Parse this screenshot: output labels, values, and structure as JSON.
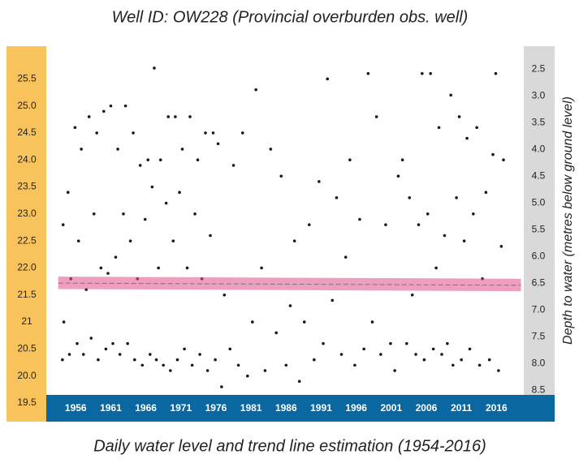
{
  "chart_data": {
    "type": "scatter",
    "title": "Well ID: OW228  (Provincial overburden obs. well)",
    "caption": "Daily water level and trend line estimation  (1954-2016)",
    "y2_label": "Depth to water (metres below ground level)",
    "color": "#1a1a1a",
    "x": [
      1954.1,
      1954.2,
      1954.3,
      1954.9,
      1955.1,
      1955.3,
      1955.9,
      1956.2,
      1956.4,
      1956.8,
      1957.1,
      1957.5,
      1957.9,
      1958.2,
      1958.6,
      1959.0,
      1959.2,
      1959.6,
      1960.0,
      1960.3,
      1960.6,
      1961.0,
      1961.3,
      1961.7,
      1962.0,
      1962.3,
      1962.8,
      1963.1,
      1963.4,
      1963.8,
      1964.2,
      1964.4,
      1964.8,
      1965.2,
      1965.5,
      1965.9,
      1966.3,
      1966.6,
      1966.9,
      1967.2,
      1967.5,
      1967.8,
      1968.1,
      1968.5,
      1968.9,
      1969.2,
      1969.5,
      1969.9,
      1970.2,
      1970.5,
      1970.8,
      1971.2,
      1971.5,
      1971.9,
      1972.3,
      1972.6,
      1973.0,
      1973.4,
      1973.7,
      1974.0,
      1974.5,
      1974.8,
      1975.2,
      1975.6,
      1975.9,
      1976.3,
      1976.8,
      1977.2,
      1978.0,
      1978.5,
      1979.2,
      1979.8,
      1980.5,
      1981.2,
      1981.7,
      1982.5,
      1983.0,
      1983.8,
      1984.6,
      1985.3,
      1986.0,
      1986.6,
      1987.2,
      1987.9,
      1988.6,
      1989.3,
      1990.0,
      1990.7,
      1991.3,
      1991.9,
      1992.6,
      1993.2,
      1993.9,
      1994.5,
      1995.1,
      1995.8,
      1996.5,
      1997.1,
      1997.7,
      1998.3,
      1998.9,
      1999.5,
      2000.2,
      2000.9,
      2001.5,
      2002.0,
      2002.6,
      2003.2,
      2003.6,
      2004.0,
      2004.5,
      2004.9,
      2005.4,
      2005.7,
      2006.2,
      2006.6,
      2007.0,
      2007.4,
      2007.8,
      2008.2,
      2008.6,
      2009.0,
      2009.5,
      2009.8,
      2010.3,
      2010.7,
      2011.0,
      2011.4,
      2011.8,
      2012.2,
      2012.7,
      2013.2,
      2013.6,
      2014.0,
      2014.5,
      2015.0,
      2015.5,
      2015.9,
      2016.3,
      2016.7,
      2017.0
    ],
    "values": [
      20.3,
      22.8,
      21.0,
      23.4,
      20.4,
      21.8,
      24.6,
      20.6,
      22.5,
      24.2,
      20.4,
      21.6,
      24.8,
      20.7,
      23.0,
      24.5,
      20.3,
      22.0,
      24.9,
      20.5,
      21.9,
      25.0,
      20.6,
      22.2,
      24.2,
      20.4,
      23.0,
      25.0,
      20.6,
      22.5,
      24.5,
      20.3,
      21.8,
      23.9,
      20.2,
      22.9,
      24.0,
      20.4,
      23.5,
      25.7,
      20.3,
      22.0,
      24.0,
      20.2,
      23.2,
      24.8,
      20.1,
      22.5,
      24.8,
      20.3,
      23.4,
      24.2,
      20.5,
      22.0,
      24.8,
      20.2,
      23.0,
      24.0,
      20.4,
      21.8,
      24.5,
      20.1,
      22.6,
      24.5,
      20.3,
      24.3,
      19.8,
      21.5,
      20.5,
      23.9,
      20.2,
      24.5,
      20.0,
      21.0,
      25.3,
      22.0,
      20.1,
      24.2,
      20.8,
      23.7,
      20.2,
      21.3,
      22.5,
      19.9,
      21.0,
      22.8,
      20.3,
      23.6,
      20.6,
      25.5,
      21.4,
      23.3,
      20.4,
      22.2,
      24.0,
      20.2,
      22.9,
      20.5,
      25.6,
      21.0,
      24.8,
      20.4,
      22.8,
      20.6,
      20.1,
      23.7,
      24.0,
      20.6,
      23.3,
      21.5,
      20.4,
      22.8,
      25.6,
      20.3,
      23.0,
      25.6,
      20.5,
      22.0,
      24.6,
      20.4,
      22.6,
      20.6,
      25.2,
      20.2,
      23.3,
      24.8,
      20.3,
      22.5,
      24.4,
      20.5,
      23.0,
      24.6,
      20.2,
      21.8,
      23.4,
      20.3,
      24.1,
      25.6,
      20.1,
      22.4,
      24.0
    ],
    "trend": {
      "x": [
        1953.5,
        2019.5
      ],
      "values": [
        21.72,
        21.68
      ],
      "lower": [
        21.61,
        21.57
      ],
      "upper": [
        21.84,
        21.8
      ],
      "color": "#e0508a"
    },
    "xlim": [
      1951.8,
      2019.9
    ],
    "xticks": [
      1956,
      1961,
      1966,
      1971,
      1976,
      1981,
      1986,
      1991,
      1996,
      2001,
      2006,
      2011,
      2016
    ],
    "ylim": [
      19.5,
      26.0
    ],
    "yticks": [
      19.5,
      {
        "value": 20,
        "label": "20.0"
      },
      20.5,
      21,
      21.5,
      {
        "value": 22,
        "label": "22.0"
      },
      22.5,
      {
        "value": 23,
        "label": "23.0"
      },
      23.5,
      {
        "value": 24,
        "label": "24.0"
      },
      24.5,
      {
        "value": 25,
        "label": "25.0"
      },
      25.5
    ],
    "y2lim": [
      8.74,
      2.18
    ],
    "y2ticks": [
      8.5,
      {
        "value": 8,
        "label": "8.0"
      },
      7.5,
      {
        "value": 7,
        "label": "7.0"
      },
      6.5,
      {
        "value": 6,
        "label": "6.0"
      },
      5.5,
      {
        "value": 5,
        "label": "5.0"
      },
      4.5,
      {
        "value": 4,
        "label": "4.0"
      },
      3.5,
      {
        "value": 3,
        "label": "3.0"
      },
      2.5
    ]
  }
}
